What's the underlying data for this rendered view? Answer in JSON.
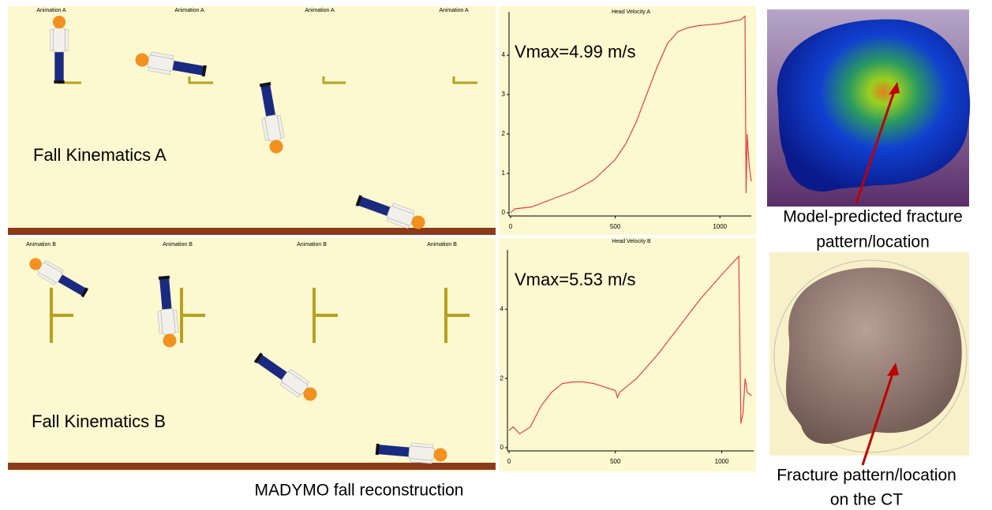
{
  "panel_a": {
    "frame_labels": [
      "Animation A",
      "Animation A",
      "Animation A",
      "Animation A"
    ],
    "label": "Fall Kinematics A"
  },
  "panel_b": {
    "frame_labels": [
      "Animation B",
      "Animation B",
      "Animation B",
      "Animation B"
    ],
    "label": "Fall Kinematics B"
  },
  "caption": "MADYMO fall reconstruction",
  "image_labels": {
    "model": [
      "Model-predicted fracture",
      "pattern/location"
    ],
    "ct": [
      "Fracture pattern/location",
      "on the CT"
    ]
  },
  "chart_data": [
    {
      "type": "line",
      "title": "Head Velocity A",
      "annotation": "Vmax=4.99 m/s",
      "color": "#e84040",
      "x": [
        0,
        20,
        100,
        200,
        300,
        400,
        500,
        550,
        600,
        650,
        700,
        750,
        800,
        850,
        900,
        1000,
        1050,
        1100,
        1120,
        1125,
        1130,
        1140,
        1150
      ],
      "values": [
        0,
        0.1,
        0.15,
        0.35,
        0.55,
        0.85,
        1.35,
        1.75,
        2.3,
        3.0,
        3.7,
        4.3,
        4.6,
        4.7,
        4.75,
        4.8,
        4.85,
        4.9,
        4.99,
        0.5,
        2.0,
        1.2,
        0.8
      ],
      "xlim": [
        0,
        1150
      ],
      "ylim": [
        0,
        5
      ],
      "xticks": [
        0,
        500,
        1000
      ],
      "yticks": [
        0,
        1,
        2,
        3,
        4
      ]
    },
    {
      "type": "line",
      "title": "Head Velocity B",
      "annotation": "Vmax=5.53 m/s",
      "color": "#e84040",
      "x": [
        0,
        20,
        50,
        100,
        150,
        200,
        250,
        300,
        350,
        400,
        450,
        500,
        510,
        520,
        600,
        700,
        800,
        900,
        1000,
        1080,
        1090,
        1100,
        1110,
        1120,
        1140
      ],
      "values": [
        0.5,
        0.6,
        0.4,
        0.6,
        1.2,
        1.6,
        1.85,
        1.9,
        1.9,
        1.85,
        1.75,
        1.65,
        1.45,
        1.6,
        2.0,
        2.7,
        3.5,
        4.3,
        5.0,
        5.53,
        0.7,
        1.0,
        2.0,
        1.6,
        1.5
      ],
      "xlim": [
        0,
        1150
      ],
      "ylim": [
        0,
        5.6
      ],
      "xticks": [
        0,
        500,
        1000
      ],
      "yticks": [
        0,
        2,
        4
      ]
    }
  ]
}
